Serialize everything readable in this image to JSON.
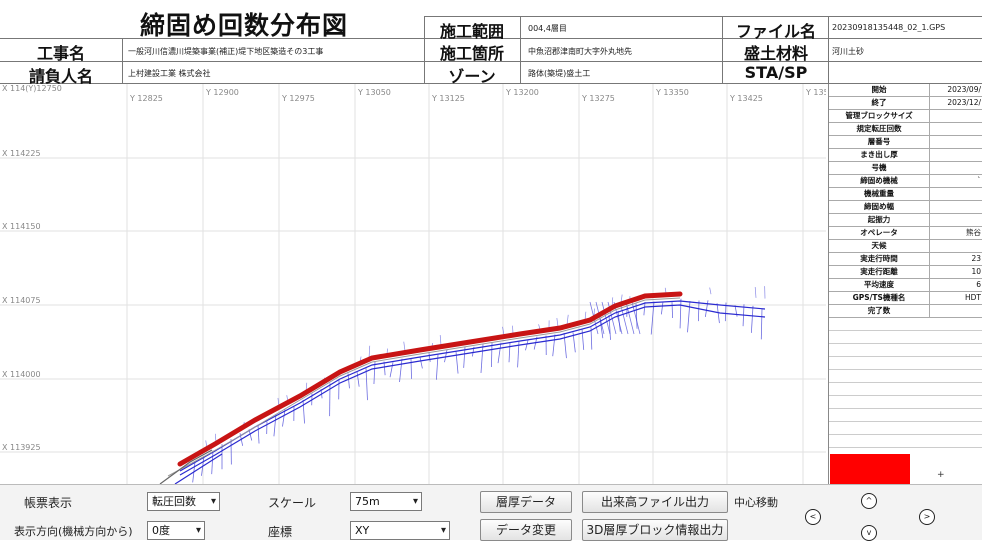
{
  "header": {
    "title": "締固め回数分布図",
    "row1": {
      "label_a": "施工範囲",
      "value_a": "004,4層目",
      "label_b": "ファイル名",
      "value_b": "20230918135448_02_1.GPS"
    },
    "row2": {
      "label_0": "工事名",
      "value_0": "一般河川信濃川堤築事業(補正)堤下地区築造その3工事",
      "label_a": "施工箇所",
      "value_a": "中魚沼郡津南町大字外丸地先",
      "label_b": "盛土材料",
      "value_b": "河川土砂"
    },
    "row3": {
      "label_0": "請負人名",
      "value_0": "上村建設工業 株式会社",
      "label_a": "ゾーン",
      "value_a": "路体(築堤)盛土工",
      "label_b": "STA/SP",
      "value_b": ""
    }
  },
  "chart": {
    "corner_label": "X 114(Y)12750",
    "y_ticks": [
      "Y 12825",
      "Y 12900",
      "Y 12975",
      "Y 13050",
      "Y 13125",
      "Y 13200",
      "Y 13275",
      "Y 13350",
      "Y 13425",
      "Y 135"
    ],
    "x_ticks": [
      "X 114225",
      "X 114150",
      "X 114075",
      "X 114000",
      "X 113925"
    ],
    "track_color": "#c81414",
    "guide_color": "#2a2ad0"
  },
  "side_panel": {
    "rows": [
      {
        "k": "開始",
        "v": "2023/09/"
      },
      {
        "k": "終了",
        "v": "2023/12/"
      },
      {
        "k": "管理ブロックサイズ",
        "v": ""
      },
      {
        "k": "規定転圧回数",
        "v": ""
      },
      {
        "k": "層番号",
        "v": ""
      },
      {
        "k": "まき出し厚",
        "v": ""
      },
      {
        "k": "号機",
        "v": ""
      },
      {
        "k": "締固め機械",
        "v": "`"
      },
      {
        "k": "機械重量",
        "v": ""
      },
      {
        "k": "締固め幅",
        "v": ""
      },
      {
        "k": "起振力",
        "v": ""
      },
      {
        "k": "オペレータ",
        "v": "熊谷"
      },
      {
        "k": "天候",
        "v": ""
      },
      {
        "k": "実走行時間",
        "v": "23"
      },
      {
        "k": "実走行距離",
        "v": "10"
      },
      {
        "k": "平均速度",
        "v": "6"
      },
      {
        "k": "GPS/TS機種名",
        "v": "HDT"
      },
      {
        "k": "完了数",
        "v": ""
      }
    ],
    "legend_color": "#ff0000",
    "plus_label": "+"
  },
  "toolbar": {
    "label_kind": "帳票表示",
    "select_kind": "転圧回数",
    "label_scale": "スケール",
    "select_scale": "75m",
    "btn_layer": "層厚データ",
    "btn_export": "出来高ファイル出力",
    "label_center": "中心移動",
    "label_direction": "表示方向(機械方向から)",
    "select_direction": "0度",
    "label_axis": "座標",
    "select_axis": "XY",
    "btn_data_change": "データ変更",
    "btn_3d": "3D層厚ブロック情報出力",
    "nav_up": "^",
    "nav_left": "<",
    "nav_right": ">",
    "nav_down": "v"
  }
}
